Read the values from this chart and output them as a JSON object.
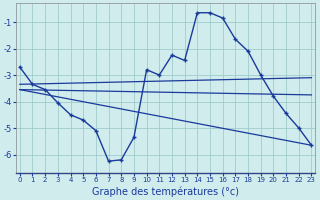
{
  "title": "Graphe des températures (°c)",
  "background_color": "#d0ecec",
  "grid_color": "#a0cccc",
  "line_color": "#1a3a9c",
  "xlim": [
    -0.3,
    23.3
  ],
  "ylim": [
    -6.7,
    -0.3
  ],
  "yticks": [
    -6,
    -5,
    -4,
    -3,
    -2,
    -1
  ],
  "xticks": [
    0,
    1,
    2,
    3,
    4,
    5,
    6,
    7,
    8,
    9,
    10,
    11,
    12,
    13,
    14,
    15,
    16,
    17,
    18,
    19,
    20,
    21,
    22,
    23
  ],
  "main_x": [
    0,
    1,
    2,
    3,
    4,
    5,
    6,
    7,
    8,
    9,
    10,
    11,
    12,
    13,
    14,
    15,
    16,
    17,
    18,
    19,
    20,
    21,
    22,
    23
  ],
  "main_y": [
    -2.7,
    -3.35,
    -3.55,
    -4.05,
    -4.5,
    -4.7,
    -5.1,
    -6.25,
    -6.2,
    -5.35,
    -2.8,
    -3.0,
    -2.25,
    -2.45,
    -0.65,
    -0.65,
    -0.85,
    -1.65,
    -2.1,
    -3.0,
    -3.8,
    -4.45,
    -5.0,
    -5.65
  ],
  "ref_line1_x": [
    0,
    23
  ],
  "ref_line1_y": [
    -3.35,
    -3.1
  ],
  "ref_line2_x": [
    0,
    23
  ],
  "ref_line2_y": [
    -3.55,
    -3.75
  ],
  "ref_line3_x": [
    0,
    23
  ],
  "ref_line3_y": [
    -3.55,
    -5.65
  ]
}
